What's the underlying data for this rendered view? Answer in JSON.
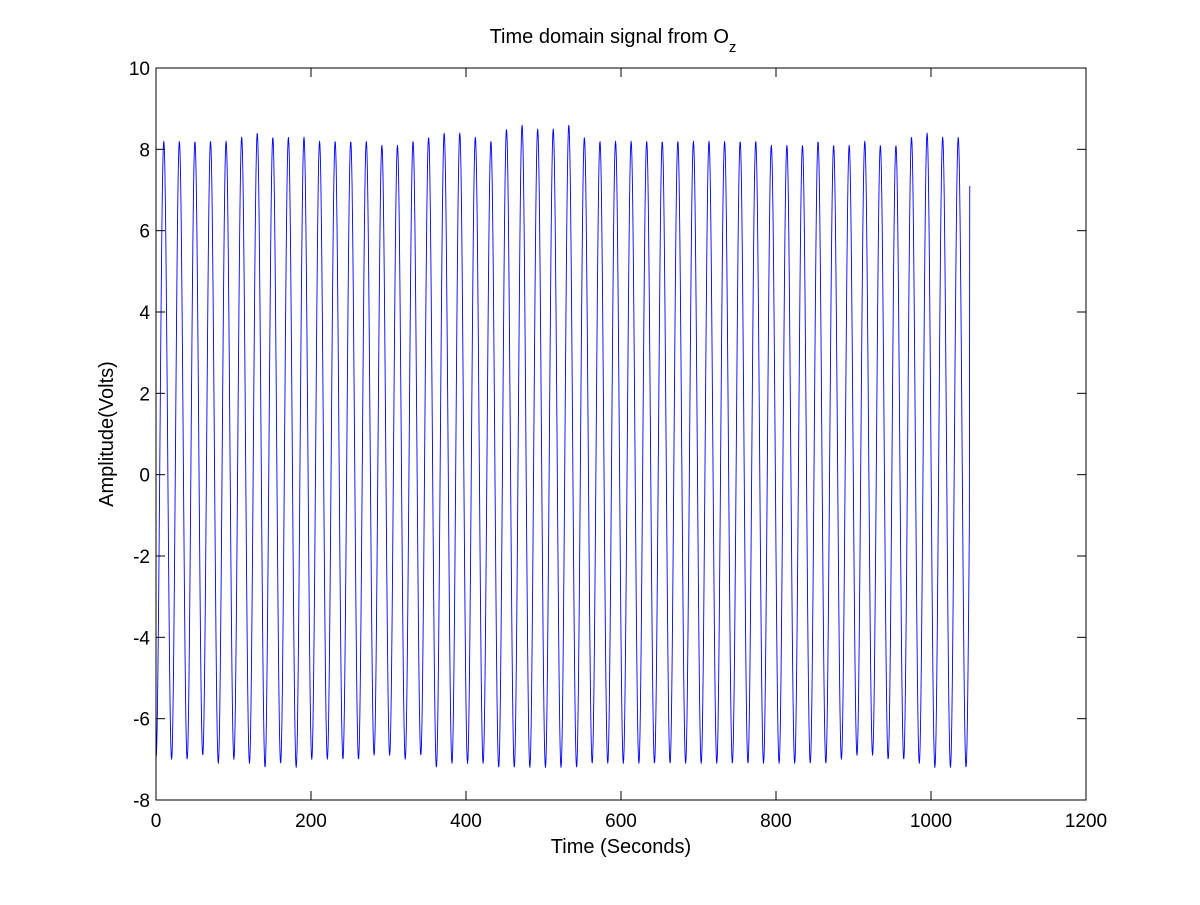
{
  "figure": {
    "background": "#ffffff"
  },
  "chart_data": {
    "type": "line",
    "title_main": "Time domain signal from O",
    "title_subscript": "z",
    "xlabel": "Time (Seconds)",
    "ylabel": "Amplitude(Volts)",
    "xlim": [
      0,
      1200
    ],
    "ylim": [
      -8,
      10
    ],
    "xticks": [
      0,
      200,
      400,
      600,
      800,
      1000,
      1200
    ],
    "xtick_labels": [
      "0",
      "200",
      "400",
      "600",
      "800",
      "1000",
      "1200"
    ],
    "yticks": [
      -8,
      -6,
      -4,
      -2,
      0,
      2,
      4,
      6,
      8,
      10
    ],
    "ytick_labels": [
      "-8",
      "-6",
      "-4",
      "-2",
      "0",
      "2",
      "4",
      "6",
      "8",
      "10"
    ],
    "grid": false,
    "legend": "none",
    "series": [
      {
        "color": "#0000ff",
        "waveform": "periodic oscillation",
        "period_seconds": 20.1,
        "x_start": 0,
        "x_end": 1050,
        "start_value": -6.3,
        "end_value": 7.1,
        "peak_values": [
          8.2,
          8.2,
          8.2,
          8.2,
          8.2,
          8.3,
          8.4,
          8.3,
          8.3,
          8.3,
          8.2,
          8.2,
          8.2,
          8.2,
          8.1,
          8.1,
          8.2,
          8.3,
          8.4,
          8.4,
          8.3,
          8.2,
          8.5,
          8.6,
          8.5,
          8.5,
          8.6,
          8.3,
          8.2,
          8.2,
          8.2,
          8.2,
          8.2,
          8.2,
          8.2,
          8.2,
          8.2,
          8.2,
          8.2,
          8.1,
          8.1,
          8.1,
          8.2,
          8.1,
          8.1,
          8.2,
          8.1,
          8.1,
          8.3,
          8.4,
          8.3,
          8.3
        ],
        "trough_values": [
          -7.0,
          -7.0,
          -6.9,
          -7.1,
          -7.0,
          -7.1,
          -7.2,
          -7.1,
          -7.2,
          -7.0,
          -7.0,
          -7.0,
          -7.0,
          -6.9,
          -6.9,
          -7.0,
          -6.9,
          -7.2,
          -7.1,
          -7.1,
          -7.1,
          -7.2,
          -7.2,
          -7.2,
          -7.2,
          -7.2,
          -7.2,
          -7.1,
          -7.1,
          -7.1,
          -7.1,
          -7.1,
          -7.1,
          -7.1,
          -7.1,
          -7.1,
          -7.1,
          -7.1,
          -7.1,
          -7.1,
          -7.1,
          -7.1,
          -7.1,
          -7.0,
          -6.9,
          -6.9,
          -7.0,
          -7.0,
          -7.1,
          -7.2,
          -7.2,
          -7.2
        ]
      }
    ]
  }
}
